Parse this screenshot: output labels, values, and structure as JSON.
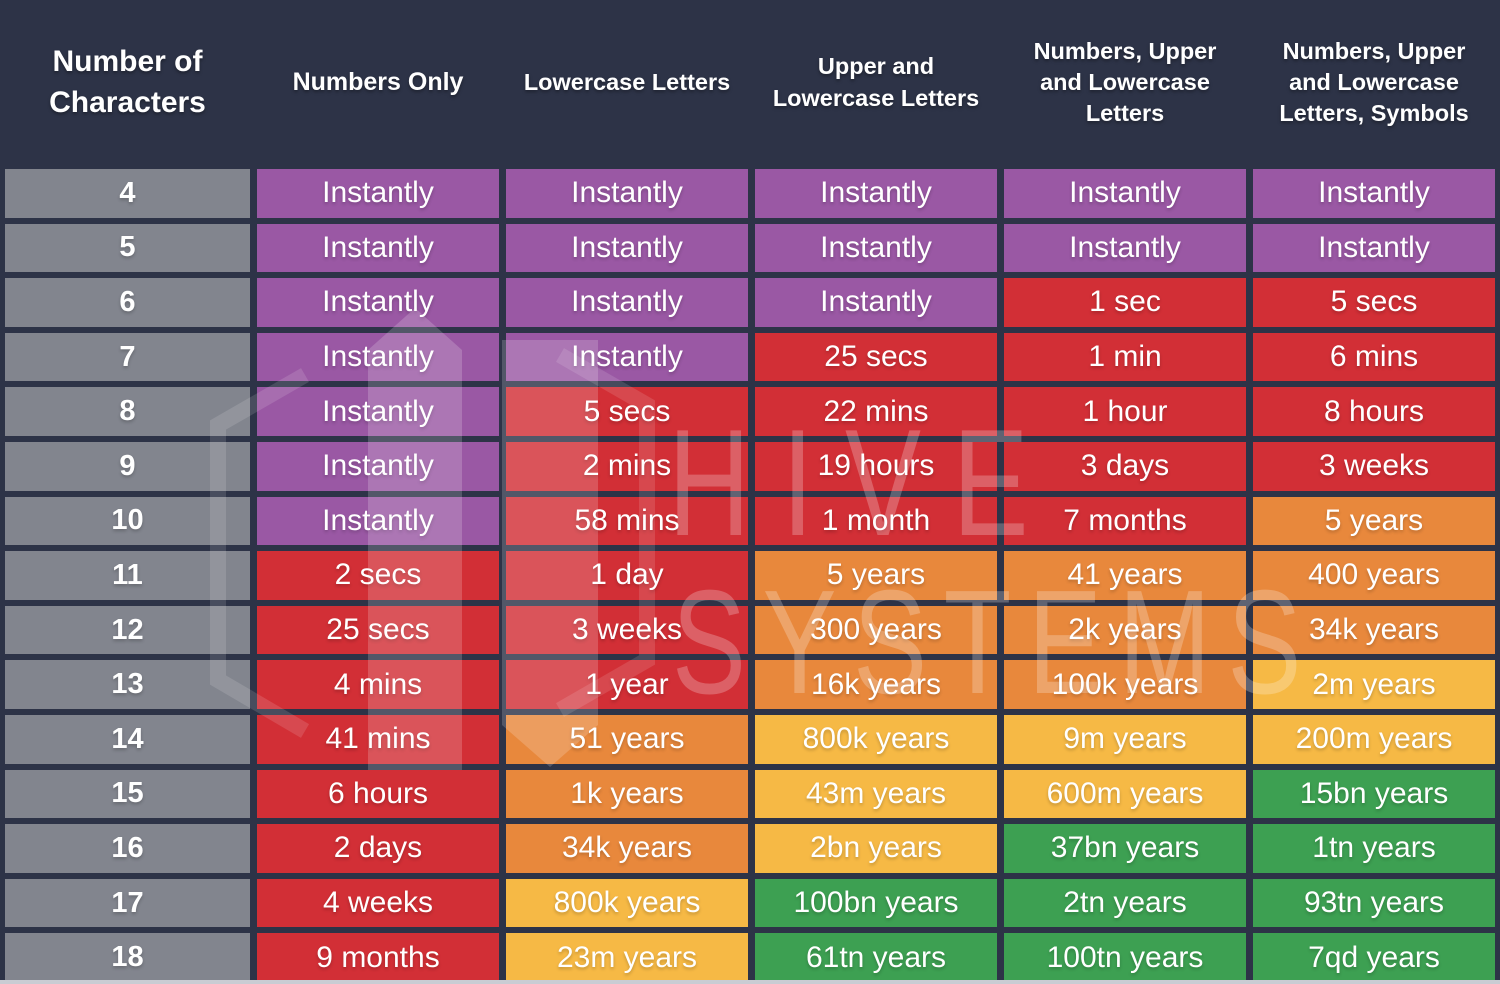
{
  "colors": {
    "navy": "#2d3347",
    "gray": "#82858e",
    "purple": "#9a58a4",
    "red": "#d22f36",
    "orange": "#e8883c",
    "yellow": "#f6b945",
    "green": "#3da052",
    "strip": "#c9ccd3",
    "text": "#ffffff"
  },
  "watermark": {
    "line1": "HIVE",
    "line2": "SYSTEMS"
  },
  "chart_data": {
    "type": "table",
    "columns": [
      "Number of Characters",
      "Numbers Only",
      "Lowercase Letters",
      "Upper and Lowercase Letters",
      "Numbers, Upper and Lowercase Letters",
      "Numbers, Upper and Lowercase Letters, Symbols"
    ],
    "legend_levels": [
      "purple",
      "red",
      "orange",
      "yellow",
      "green"
    ],
    "rows": [
      {
        "characters": "4",
        "values": [
          {
            "text": "Instantly",
            "level": "purple"
          },
          {
            "text": "Instantly",
            "level": "purple"
          },
          {
            "text": "Instantly",
            "level": "purple"
          },
          {
            "text": "Instantly",
            "level": "purple"
          },
          {
            "text": "Instantly",
            "level": "purple"
          }
        ]
      },
      {
        "characters": "5",
        "values": [
          {
            "text": "Instantly",
            "level": "purple"
          },
          {
            "text": "Instantly",
            "level": "purple"
          },
          {
            "text": "Instantly",
            "level": "purple"
          },
          {
            "text": "Instantly",
            "level": "purple"
          },
          {
            "text": "Instantly",
            "level": "purple"
          }
        ]
      },
      {
        "characters": "6",
        "values": [
          {
            "text": "Instantly",
            "level": "purple"
          },
          {
            "text": "Instantly",
            "level": "purple"
          },
          {
            "text": "Instantly",
            "level": "purple"
          },
          {
            "text": "1 sec",
            "level": "red"
          },
          {
            "text": "5 secs",
            "level": "red"
          }
        ]
      },
      {
        "characters": "7",
        "values": [
          {
            "text": "Instantly",
            "level": "purple"
          },
          {
            "text": "Instantly",
            "level": "purple"
          },
          {
            "text": "25 secs",
            "level": "red"
          },
          {
            "text": "1 min",
            "level": "red"
          },
          {
            "text": "6 mins",
            "level": "red"
          }
        ]
      },
      {
        "characters": "8",
        "values": [
          {
            "text": "Instantly",
            "level": "purple"
          },
          {
            "text": "5 secs",
            "level": "red"
          },
          {
            "text": "22 mins",
            "level": "red"
          },
          {
            "text": "1 hour",
            "level": "red"
          },
          {
            "text": "8 hours",
            "level": "red"
          }
        ]
      },
      {
        "characters": "9",
        "values": [
          {
            "text": "Instantly",
            "level": "purple"
          },
          {
            "text": "2 mins",
            "level": "red"
          },
          {
            "text": "19 hours",
            "level": "red"
          },
          {
            "text": "3 days",
            "level": "red"
          },
          {
            "text": "3 weeks",
            "level": "red"
          }
        ]
      },
      {
        "characters": "10",
        "values": [
          {
            "text": "Instantly",
            "level": "purple"
          },
          {
            "text": "58 mins",
            "level": "red"
          },
          {
            "text": "1 month",
            "level": "red"
          },
          {
            "text": "7 months",
            "level": "red"
          },
          {
            "text": "5 years",
            "level": "orange"
          }
        ]
      },
      {
        "characters": "11",
        "values": [
          {
            "text": "2 secs",
            "level": "red"
          },
          {
            "text": "1 day",
            "level": "red"
          },
          {
            "text": "5 years",
            "level": "orange"
          },
          {
            "text": "41 years",
            "level": "orange"
          },
          {
            "text": "400 years",
            "level": "orange"
          }
        ]
      },
      {
        "characters": "12",
        "values": [
          {
            "text": "25 secs",
            "level": "red"
          },
          {
            "text": "3 weeks",
            "level": "red"
          },
          {
            "text": "300 years",
            "level": "orange"
          },
          {
            "text": "2k years",
            "level": "orange"
          },
          {
            "text": "34k years",
            "level": "orange"
          }
        ]
      },
      {
        "characters": "13",
        "values": [
          {
            "text": "4 mins",
            "level": "red"
          },
          {
            "text": "1 year",
            "level": "red"
          },
          {
            "text": "16k years",
            "level": "orange"
          },
          {
            "text": "100k years",
            "level": "orange"
          },
          {
            "text": "2m years",
            "level": "yellow"
          }
        ]
      },
      {
        "characters": "14",
        "values": [
          {
            "text": "41 mins",
            "level": "red"
          },
          {
            "text": "51 years",
            "level": "orange"
          },
          {
            "text": "800k years",
            "level": "yellow"
          },
          {
            "text": "9m years",
            "level": "yellow"
          },
          {
            "text": "200m years",
            "level": "yellow"
          }
        ]
      },
      {
        "characters": "15",
        "values": [
          {
            "text": "6 hours",
            "level": "red"
          },
          {
            "text": "1k years",
            "level": "orange"
          },
          {
            "text": "43m years",
            "level": "yellow"
          },
          {
            "text": "600m years",
            "level": "yellow"
          },
          {
            "text": "15bn years",
            "level": "green"
          }
        ]
      },
      {
        "characters": "16",
        "values": [
          {
            "text": "2 days",
            "level": "red"
          },
          {
            "text": "34k years",
            "level": "orange"
          },
          {
            "text": "2bn years",
            "level": "yellow"
          },
          {
            "text": "37bn years",
            "level": "green"
          },
          {
            "text": "1tn years",
            "level": "green"
          }
        ]
      },
      {
        "characters": "17",
        "values": [
          {
            "text": "4 weeks",
            "level": "red"
          },
          {
            "text": "800k years",
            "level": "yellow"
          },
          {
            "text": "100bn years",
            "level": "green"
          },
          {
            "text": "2tn years",
            "level": "green"
          },
          {
            "text": "93tn years",
            "level": "green"
          }
        ]
      },
      {
        "characters": "18",
        "values": [
          {
            "text": "9 months",
            "level": "red"
          },
          {
            "text": "23m years",
            "level": "yellow"
          },
          {
            "text": "61tn years",
            "level": "green"
          },
          {
            "text": "100tn years",
            "level": "green"
          },
          {
            "text": "7qd years",
            "level": "green"
          }
        ]
      }
    ]
  }
}
